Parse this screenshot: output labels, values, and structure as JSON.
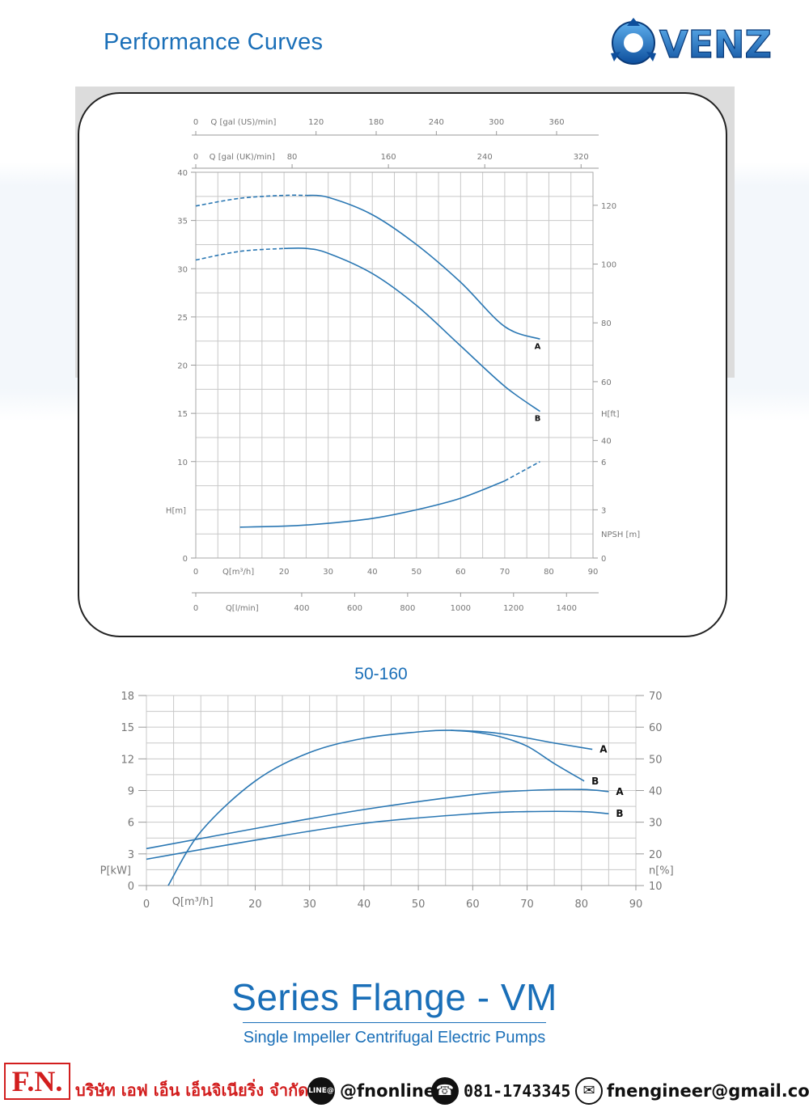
{
  "header": {
    "title": "Performance Curves",
    "brand": "VENZ"
  },
  "colors": {
    "accent": "#1a6fb8",
    "curve": "#2a77b3",
    "grid": "#c8c8c8",
    "axis_text": "#777777",
    "footer_red": "#d21e1e"
  },
  "chart_data": [
    {
      "type": "line",
      "title": "",
      "xlabel": "Q[m³/h]",
      "ylabel": "H[m]",
      "xlim": [
        0,
        90
      ],
      "ylim": [
        0,
        40
      ],
      "grid": true,
      "x_ticks": [
        0,
        20,
        30,
        40,
        50,
        60,
        70,
        80,
        90
      ],
      "y_ticks": [
        0,
        10,
        15,
        20,
        25,
        30,
        35,
        40
      ],
      "top_axis_1": {
        "label": "Q [gal (US)/min]",
        "ticks": [
          0,
          120,
          180,
          240,
          300,
          360
        ]
      },
      "top_axis_2": {
        "label": "Q [gal (UK)/min]",
        "ticks": [
          0,
          80,
          160,
          240,
          320
        ]
      },
      "bottom_axis_2": {
        "label": "Q[l/min]",
        "ticks": [
          0,
          400,
          600,
          800,
          1000,
          1200,
          1400
        ]
      },
      "right_axis_ft": {
        "label": "H[ft]",
        "ticks": [
          40,
          60,
          80,
          100,
          120
        ]
      },
      "right_axis_npsh": {
        "label": "NPSH [m]",
        "ticks": [
          0,
          3,
          6
        ]
      },
      "series": [
        {
          "name": "A",
          "dashed_until": 25,
          "x": [
            0,
            10,
            20,
            25,
            30,
            40,
            50,
            60,
            70,
            78
          ],
          "y": [
            36.5,
            37.3,
            37.6,
            37.6,
            37.4,
            35.6,
            32.5,
            28.6,
            24.0,
            22.7
          ]
        },
        {
          "name": "B",
          "dashed_until": 20,
          "x": [
            0,
            10,
            20,
            25,
            30,
            40,
            50,
            60,
            70,
            78
          ],
          "y": [
            30.9,
            31.8,
            32.1,
            32.1,
            31.6,
            29.5,
            26.2,
            22.0,
            17.8,
            15.2
          ]
        },
        {
          "name": "",
          "role": "NPSH",
          "dashed_from": 70,
          "x": [
            10,
            20,
            30,
            40,
            50,
            60,
            70,
            78
          ],
          "y": [
            3.2,
            3.3,
            3.6,
            4.1,
            5.0,
            6.2,
            8.0,
            10.0
          ]
        }
      ]
    },
    {
      "type": "line",
      "title": "50-160",
      "xlabel": "Q[m³/h]",
      "ylabel": "P[kW]",
      "y2label": "n[%]",
      "xlim": [
        0,
        90
      ],
      "ylim": [
        0,
        18
      ],
      "y2lim": [
        10,
        70
      ],
      "grid": true,
      "x_ticks": [
        0,
        20,
        30,
        40,
        50,
        60,
        70,
        80,
        90
      ],
      "y_ticks": [
        0,
        3,
        6,
        9,
        12,
        15,
        18
      ],
      "y2_ticks": [
        10,
        20,
        30,
        40,
        50,
        60,
        70
      ],
      "series": [
        {
          "name": "A",
          "axis": "n[%]",
          "x": [
            4,
            10,
            20,
            30,
            40,
            50,
            56,
            65,
            75,
            82
          ],
          "y": [
            10,
            27,
            43,
            52,
            56.5,
            58.5,
            59,
            58,
            55,
            53
          ]
        },
        {
          "name": "B",
          "axis": "n[%]",
          "x": [
            56,
            60,
            65,
            70,
            75,
            80.5
          ],
          "y": [
            59,
            58.5,
            57,
            54,
            48.5,
            43
          ]
        },
        {
          "name": "A",
          "axis": "P[kW]",
          "x": [
            0,
            20,
            40,
            60,
            70,
            80,
            85
          ],
          "y": [
            3.5,
            5.4,
            7.2,
            8.6,
            9.0,
            9.1,
            8.9
          ]
        },
        {
          "name": "B",
          "axis": "P[kW]",
          "x": [
            0,
            20,
            40,
            60,
            70,
            80,
            85
          ],
          "y": [
            2.5,
            4.3,
            5.9,
            6.8,
            7.0,
            7.0,
            6.8
          ]
        }
      ]
    }
  ],
  "product": {
    "series_title": "Series Flange - VM",
    "subtitle": "Single Impeller Centrifugal Electric Pumps"
  },
  "footer": {
    "logo_text": "F.N.",
    "company_name": "บริษัท เอฟ เอ็น เอ็นจิเนียริ่ง จำกัด",
    "line_badge": "LINE@",
    "line_id": "@fnonline",
    "phone": "081-1743345",
    "email": "fnengineer@gmail.com"
  }
}
